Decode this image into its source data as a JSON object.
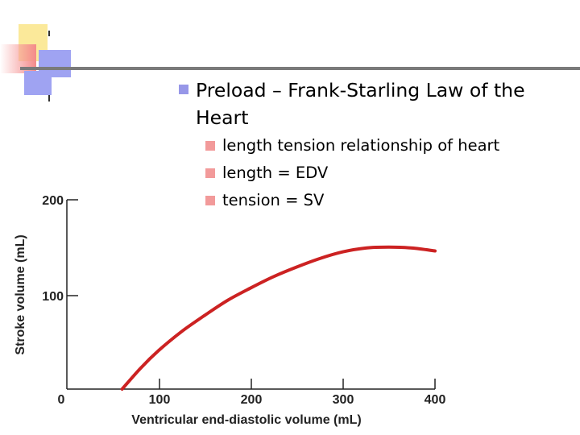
{
  "slide": {
    "title": "Preload – Frank-Starling Law of the Heart",
    "bullets": [
      "length tension relationship of heart",
      "length = EDV",
      "tension = SV"
    ]
  },
  "colors": {
    "curve": "#cc2222",
    "title_bullet": "#9797e8",
    "sub_bullet": "#f29a9a"
  },
  "chart_data": {
    "type": "line",
    "title": "",
    "xlabel": "Ventricular end-diastolic volume (mL)",
    "ylabel": "Stroke volume (mL)",
    "xlim": [
      0,
      400
    ],
    "ylim": [
      0,
      200
    ],
    "x_ticks": [
      100,
      200,
      300,
      400
    ],
    "y_ticks": [
      100,
      200
    ],
    "origin_label": "0",
    "grid": false,
    "series": [
      {
        "x": [
          60,
          80,
          100,
          125,
          150,
          175,
          200,
          225,
          250,
          275,
          300,
          325,
          350,
          375,
          400
        ],
        "y": [
          0,
          22,
          41,
          61,
          78,
          94,
          107,
          119,
          129,
          138,
          145,
          149,
          150,
          149,
          146
        ]
      }
    ]
  }
}
